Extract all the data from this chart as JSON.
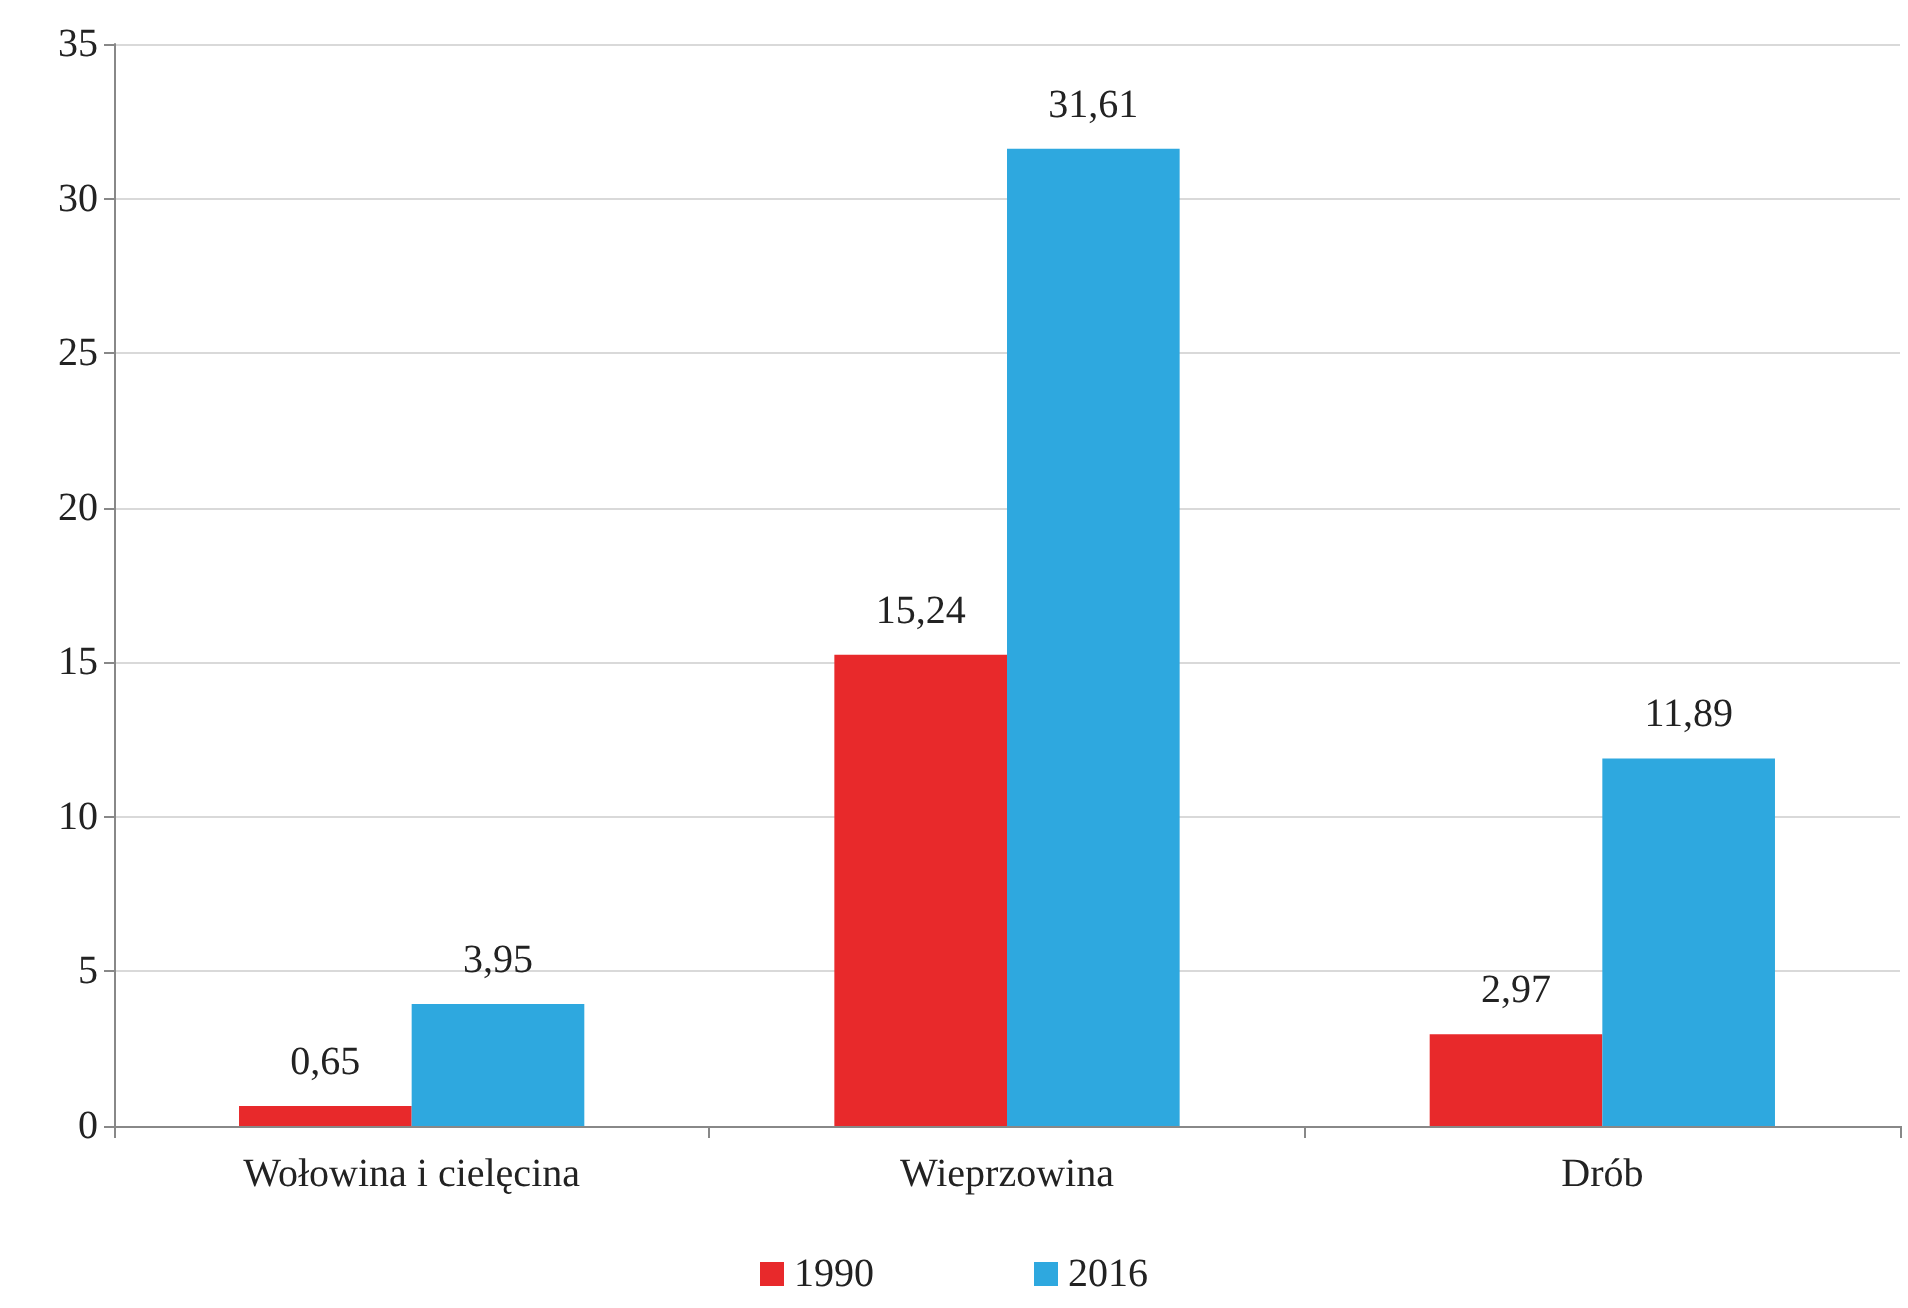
{
  "chart_data": {
    "type": "bar",
    "categories": [
      "Wołowina i cielęcina",
      "Wieprzowina",
      "Drób"
    ],
    "series": [
      {
        "name": "1990",
        "color": "#e8292b",
        "values": [
          0.65,
          15.24,
          2.97
        ],
        "value_labels": [
          "0,65",
          "15,24",
          "2,97"
        ]
      },
      {
        "name": "2016",
        "color": "#2ea8df",
        "values": [
          3.95,
          31.61,
          11.89
        ],
        "value_labels": [
          "3,95",
          "31,61",
          "11,89"
        ]
      }
    ],
    "ylim": [
      0,
      35
    ],
    "yticks": [
      0,
      5,
      10,
      15,
      20,
      25,
      30,
      35
    ],
    "grid": "y",
    "legend": "bottom"
  }
}
